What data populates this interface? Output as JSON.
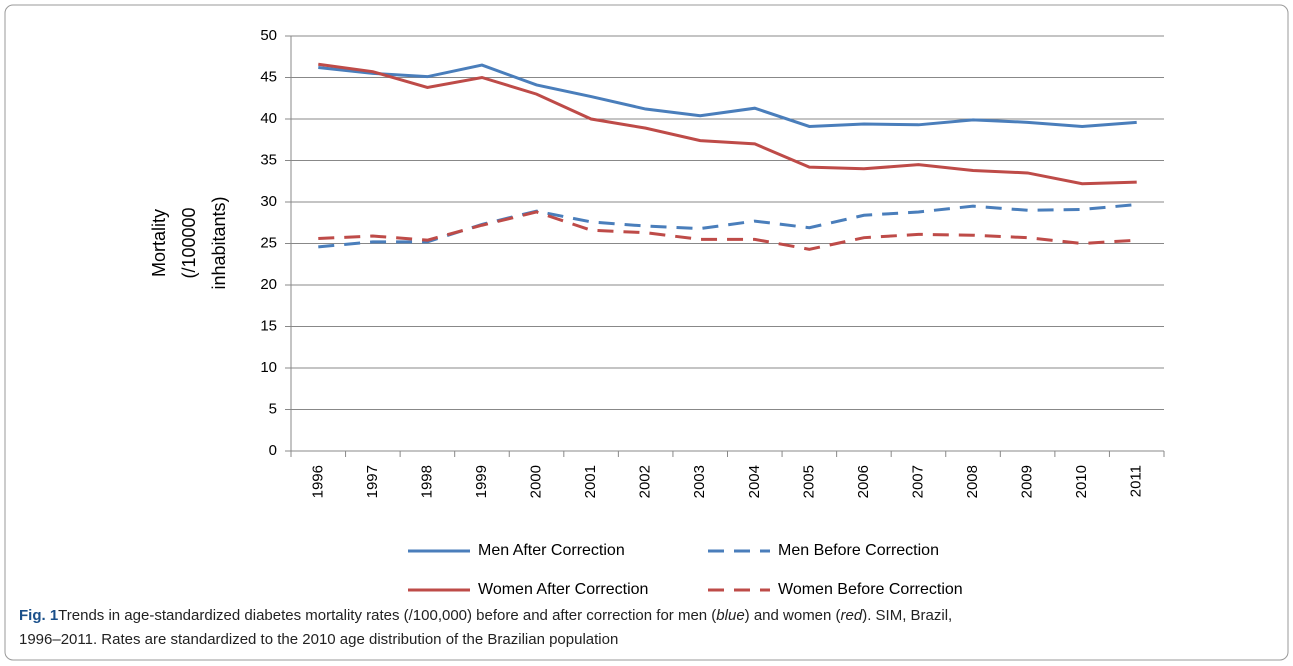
{
  "chart_data": {
    "type": "line",
    "ylabel": [
      "Mortality",
      "(/100000",
      "inhabitants)"
    ],
    "categories": [
      "1996",
      "1997",
      "1998",
      "1999",
      "2000",
      "2001",
      "2002",
      "2003",
      "2004",
      "2005",
      "2006",
      "2007",
      "2008",
      "2009",
      "2010",
      "2011"
    ],
    "series": [
      {
        "name": "Men After Correction",
        "color": "#4a7ebb",
        "dashed": false,
        "values": [
          46.2,
          45.5,
          45.1,
          46.5,
          44.1,
          42.7,
          41.2,
          40.4,
          41.3,
          39.1,
          39.4,
          39.3,
          39.9,
          39.6,
          39.1,
          39.6
        ]
      },
      {
        "name": "Men Before Correction",
        "color": "#4a7ebb",
        "dashed": true,
        "values": [
          24.6,
          25.2,
          25.2,
          27.3,
          28.9,
          27.6,
          27.1,
          26.8,
          27.7,
          26.9,
          28.4,
          28.8,
          29.5,
          29.0,
          29.1,
          29.7
        ]
      },
      {
        "name": "Women After Correction",
        "color": "#be4b48",
        "dashed": false,
        "values": [
          46.6,
          45.7,
          43.8,
          45.0,
          43.0,
          40.0,
          38.9,
          37.4,
          37.0,
          34.2,
          34.0,
          34.5,
          33.8,
          33.5,
          32.2,
          32.4
        ]
      },
      {
        "name": "Women Before Correction",
        "color": "#be4b48",
        "dashed": true,
        "values": [
          25.6,
          25.9,
          25.4,
          27.2,
          28.8,
          26.6,
          26.3,
          25.5,
          25.5,
          24.3,
          25.7,
          26.1,
          26.0,
          25.7,
          25.0,
          25.4
        ]
      }
    ],
    "ylim": [
      0,
      50
    ],
    "yticks": [
      0,
      5,
      10,
      15,
      20,
      25,
      30,
      35,
      40,
      45,
      50
    ],
    "grid": true,
    "legend": "bottom"
  },
  "caption": {
    "label": "Fig. 1",
    "lines": [
      [
        {
          "text": "Trends in age-standardized diabetes mortality rates (/100,000) before and after correction for men (",
          "italic": false
        },
        {
          "text": "blue",
          "italic": true
        },
        {
          "text": ") and women (",
          "italic": false
        },
        {
          "text": "red",
          "italic": true
        },
        {
          "text": "). SIM, Brazil,",
          "italic": false
        }
      ],
      [
        {
          "text": "1996–2011. Rates are standardized to the 2010 age distribution of the Brazilian population",
          "italic": false
        }
      ]
    ]
  }
}
